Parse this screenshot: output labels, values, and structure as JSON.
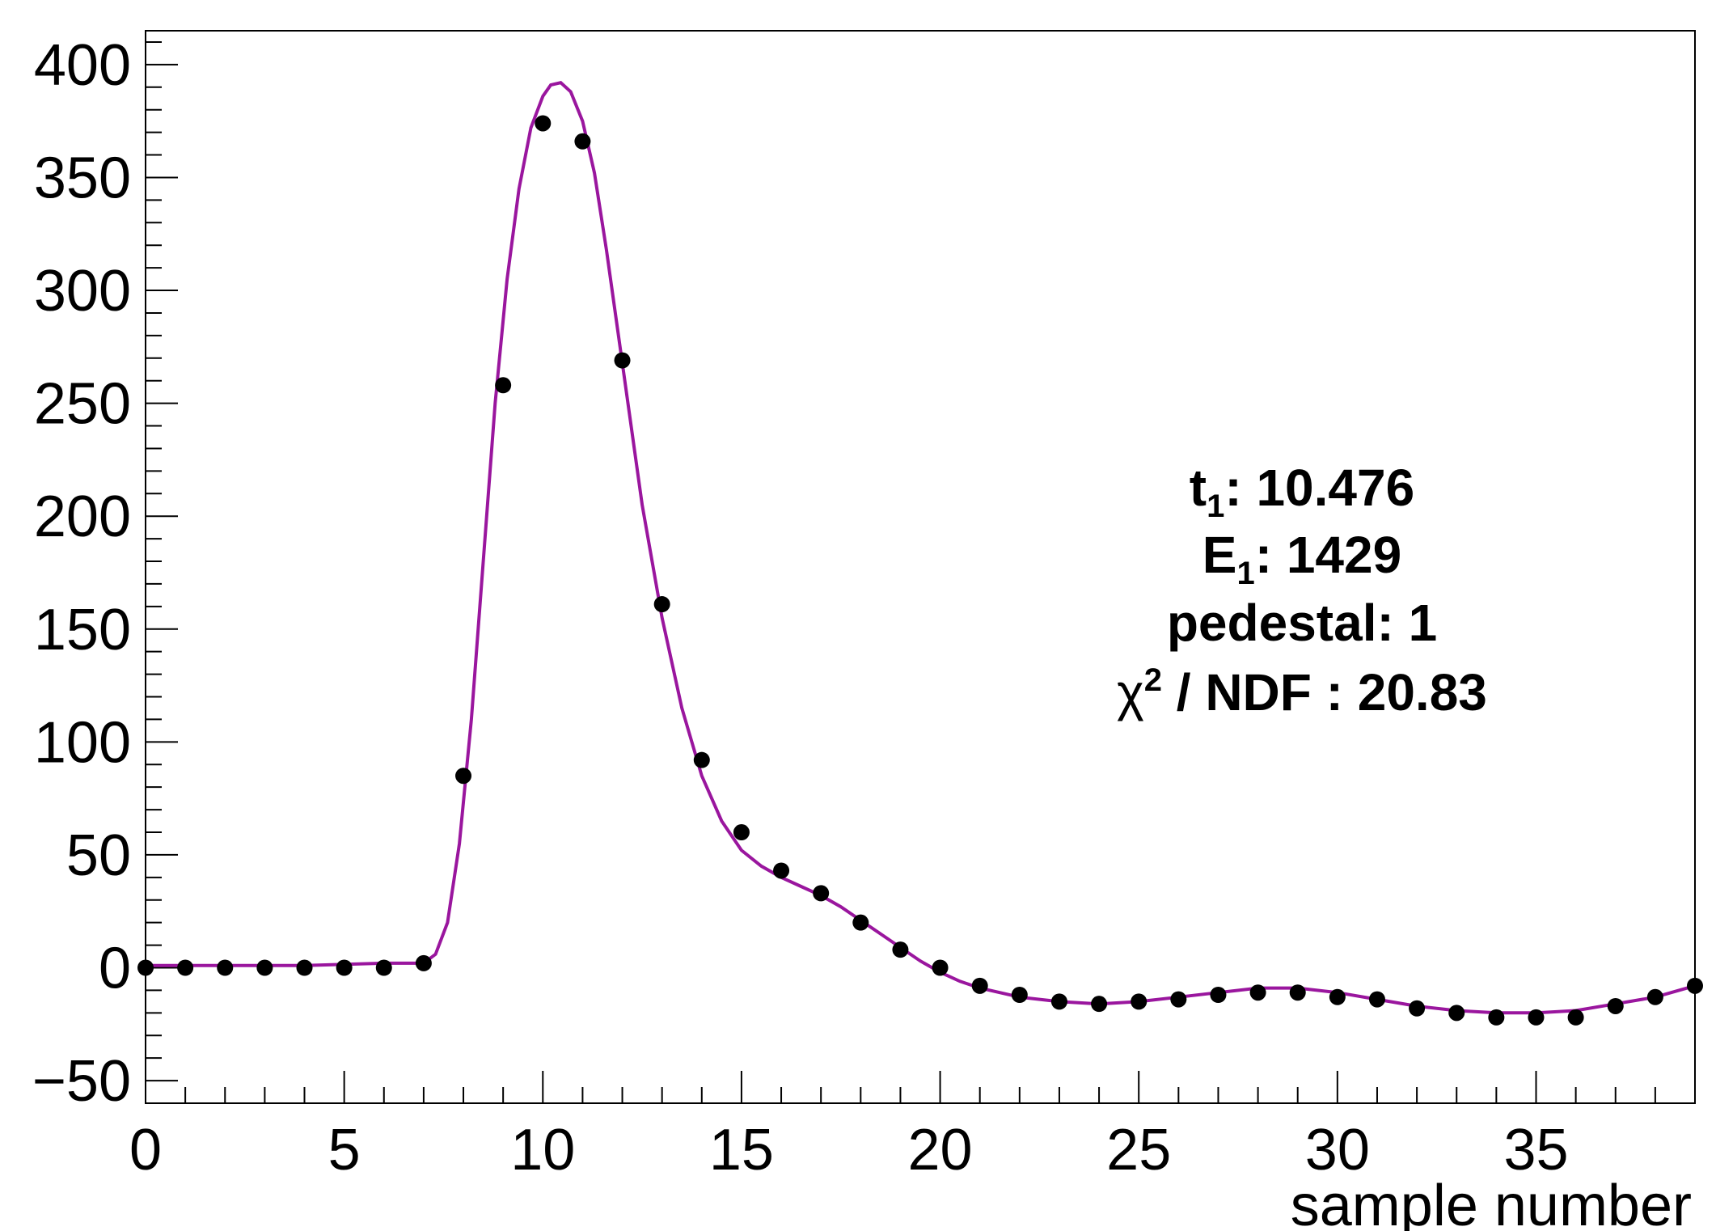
{
  "chart_data": {
    "type": "scatter",
    "xlabel": "sample number",
    "ylabel": "",
    "xlim": [
      0,
      39
    ],
    "ylim": [
      -60,
      415
    ],
    "x_ticks": [
      0,
      5,
      10,
      15,
      20,
      25,
      30,
      35
    ],
    "y_ticks": [
      -50,
      0,
      50,
      100,
      150,
      200,
      250,
      300,
      350,
      400
    ],
    "grid": false,
    "colors": {
      "points": "#000000",
      "fit": "#9a169e",
      "frame": "#000000"
    },
    "series": [
      {
        "kind": "points",
        "x": [
          0,
          1,
          2,
          3,
          4,
          5,
          6,
          7,
          8,
          9,
          10,
          11,
          12,
          13,
          14,
          15,
          16,
          17,
          18,
          19,
          20,
          21,
          22,
          23,
          24,
          25,
          26,
          27,
          28,
          29,
          30,
          31,
          32,
          33,
          34,
          35,
          36,
          37,
          38,
          39
        ],
        "y": [
          0,
          0,
          0,
          0,
          0,
          0,
          0,
          2,
          85,
          258,
          374,
          366,
          269,
          161,
          92,
          60,
          43,
          33,
          20,
          8,
          0,
          -8,
          -12,
          -15,
          -16,
          -15,
          -14,
          -12,
          -11,
          -11,
          -13,
          -14,
          -18,
          -20,
          -22,
          -22,
          -22,
          -17,
          -13,
          -8
        ]
      },
      {
        "kind": "fit-line",
        "x": [
          0,
          2,
          4,
          6,
          7,
          7.3,
          7.6,
          7.9,
          8.2,
          8.5,
          8.8,
          9.1,
          9.4,
          9.7,
          10,
          10.2,
          10.45,
          10.7,
          11,
          11.3,
          11.6,
          12,
          12.5,
          13,
          13.5,
          14,
          14.5,
          15,
          15.5,
          16,
          16.5,
          17,
          17.5,
          18,
          18.5,
          19,
          19.5,
          20,
          20.5,
          21,
          22,
          23,
          24,
          25,
          26,
          27,
          28,
          29,
          30,
          31,
          32,
          33,
          34,
          35,
          36,
          37,
          38,
          39
        ],
        "y": [
          1,
          1,
          1,
          2,
          2,
          6,
          20,
          55,
          110,
          180,
          250,
          305,
          345,
          372,
          386,
          391,
          392,
          388,
          375,
          352,
          318,
          268,
          205,
          155,
          115,
          85,
          65,
          52,
          45,
          40,
          36,
          32,
          27,
          21,
          15,
          9,
          3,
          -2,
          -6,
          -9,
          -13,
          -15,
          -16,
          -15,
          -13,
          -11,
          -9,
          -9,
          -11,
          -14,
          -17,
          -19,
          -20,
          -20,
          -19,
          -16,
          -13,
          -8
        ]
      }
    ],
    "annotations": {
      "t_label": "t",
      "t_sub": "1",
      "t_value": ": 10.476",
      "e_label": "E",
      "e_sub": "1",
      "e_value": ": 1429",
      "pedestal": "pedestal: 1",
      "chi_symbol": "χ",
      "chi_sup": "2",
      "chi_rest": " / NDF : 20.83"
    }
  }
}
